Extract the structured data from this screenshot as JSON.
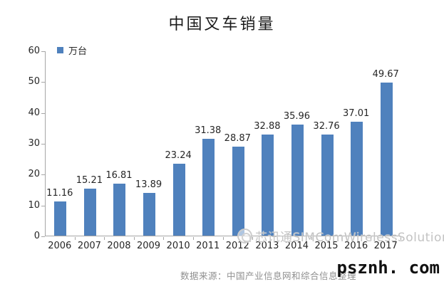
{
  "chart_data": {
    "type": "bar",
    "title": "中国叉车销量",
    "legend_label": "万台",
    "legend_position": "top-left",
    "categories": [
      "2006",
      "2007",
      "2008",
      "2009",
      "2010",
      "2011",
      "2012",
      "2013",
      "2014",
      "2015",
      "2016",
      "2017"
    ],
    "values": [
      11.16,
      15.21,
      16.81,
      13.89,
      23.24,
      31.38,
      28.87,
      32.88,
      35.96,
      32.76,
      37.01,
      49.67
    ],
    "xlabel": "",
    "ylabel": "万台",
    "ylim": [
      0,
      60
    ],
    "ytick_step": 10,
    "grid": false,
    "bar_color": "#4f81bd",
    "axis_color": "#a6a6a6",
    "label_color": "#262626"
  },
  "watermark": {
    "logo": "simcom-logo",
    "text": "芯讯通SIMComWirelessSolutions"
  },
  "footer": {
    "source": "数据来源：中国产业信息网和综合信息整理",
    "site": "psznh. com"
  }
}
